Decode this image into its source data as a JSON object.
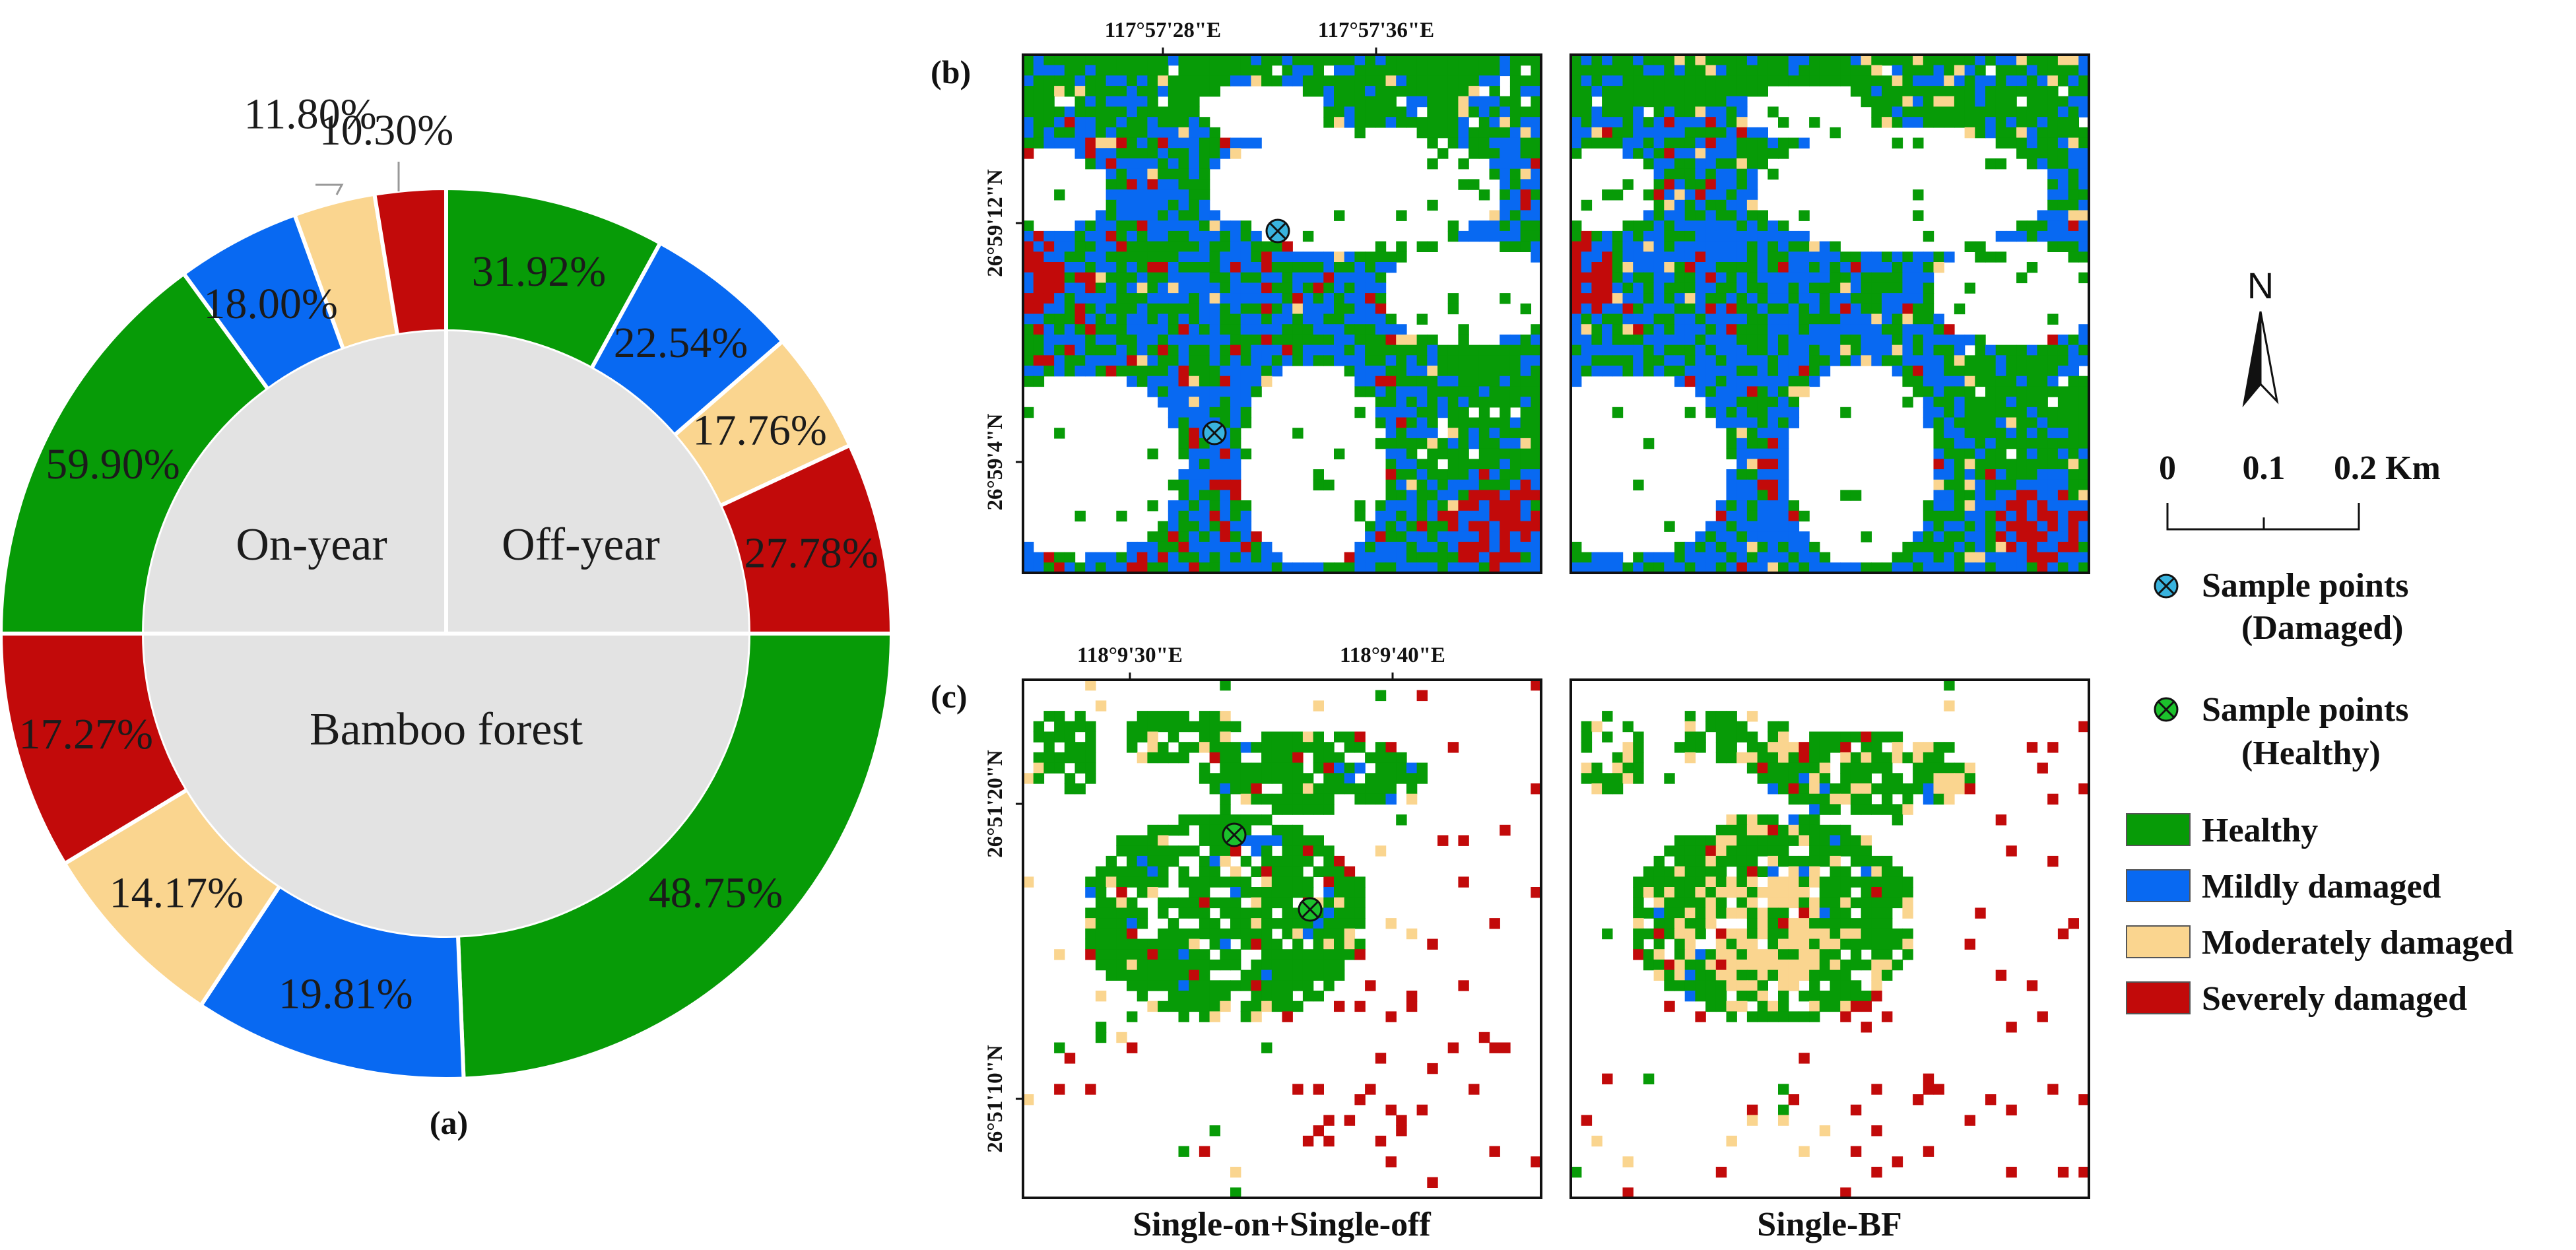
{
  "chart_data": [
    {
      "panel": "(a)",
      "type": "pie",
      "subtype": "nested-donut",
      "inner_ring": [
        "On-year",
        "Off-year",
        "Bamboo forest"
      ],
      "outer_ring": [
        {
          "group": "Off-year",
          "values": [
            {
              "category": "Healthy",
              "value": 31.92,
              "label": "31.92%"
            },
            {
              "category": "Mildly damaged",
              "value": 22.54,
              "label": "22.54%"
            },
            {
              "category": "Moderately damaged",
              "value": 17.76,
              "label": "17.76%"
            },
            {
              "category": "Severely damaged",
              "value": 27.78,
              "label": "27.78%"
            }
          ]
        },
        {
          "group": "Bamboo forest",
          "values": [
            {
              "category": "Healthy",
              "value": 48.75,
              "label": "48.75%"
            },
            {
              "category": "Mildly damaged",
              "value": 19.81,
              "label": "19.81%"
            },
            {
              "category": "Moderately damaged",
              "value": 14.17,
              "label": "14.17%"
            },
            {
              "category": "Severely damaged",
              "value": 17.27,
              "label": "17.27%"
            }
          ]
        },
        {
          "group": "On-year",
          "values": [
            {
              "category": "Healthy",
              "value": 59.9,
              "label": "59.90%"
            },
            {
              "category": "Mildly damaged",
              "value": 18.0,
              "label": "18.00%"
            },
            {
              "category": "Moderately damaged",
              "value": 11.8,
              "label": "11.80%"
            },
            {
              "category": "Severely damaged",
              "value": 10.3,
              "label": "10.30%"
            }
          ]
        }
      ]
    },
    {
      "panel": "(b)",
      "type": "heatmap",
      "maps": [
        "Single-on+Single-off",
        "Single-BF"
      ],
      "x_ticks": [
        "117°57'28\"E",
        "117°57'36\"E"
      ],
      "y_ticks": [
        "26°59'12\"N",
        "26°59'4\"N"
      ],
      "sample_points": "Sample points (Damaged)"
    },
    {
      "panel": "(c)",
      "type": "heatmap",
      "maps": [
        "Single-on+Single-off",
        "Single-BF"
      ],
      "x_ticks": [
        "118°9'30\"E",
        "118°9'40\"E"
      ],
      "y_ticks": [
        "26°51'20\"N",
        "26°51'10\"N"
      ],
      "sample_points": "Sample points (Healthy)"
    }
  ],
  "colors": {
    "Healthy": "#079B07",
    "Mildly damaged": "#0869F2",
    "Moderately damaged": "#FAD58F",
    "Severely damaged": "#C20A0A",
    "inner_fill": "#E3E3E3",
    "sample_damaged": "#39B3DE",
    "sample_healthy": "#1CC12C"
  },
  "panel_labels": {
    "a": "(a)",
    "b": "(b)",
    "c": "(c)"
  },
  "inner_labels": {
    "on_year": "On-year",
    "off_year": "Off-year",
    "bamboo": "Bamboo forest"
  },
  "coords": {
    "b_x1": "117°57'28\"E",
    "b_x2": "117°57'36\"E",
    "b_y1": "26°59'12\"N",
    "b_y2": "26°59'4\"N",
    "c_x1": "118°9'30\"E",
    "c_x2": "118°9'40\"E",
    "c_y1": "26°51'20\"N",
    "c_y2": "26°51'10\"N"
  },
  "north": "N",
  "scale": {
    "t0": "0",
    "t1": "0.1",
    "t2": "0.2 Km"
  },
  "legend": {
    "damaged_line1": "Sample points",
    "damaged_line2": "(Damaged)",
    "healthy_line1": "Sample points",
    "healthy_line2": "(Healthy)",
    "classes": [
      "Healthy",
      "Mildly damaged",
      "Moderately damaged",
      "Severely damaged"
    ]
  },
  "captions": {
    "left": "Single-on+Single-off",
    "right": "Single-BF"
  }
}
